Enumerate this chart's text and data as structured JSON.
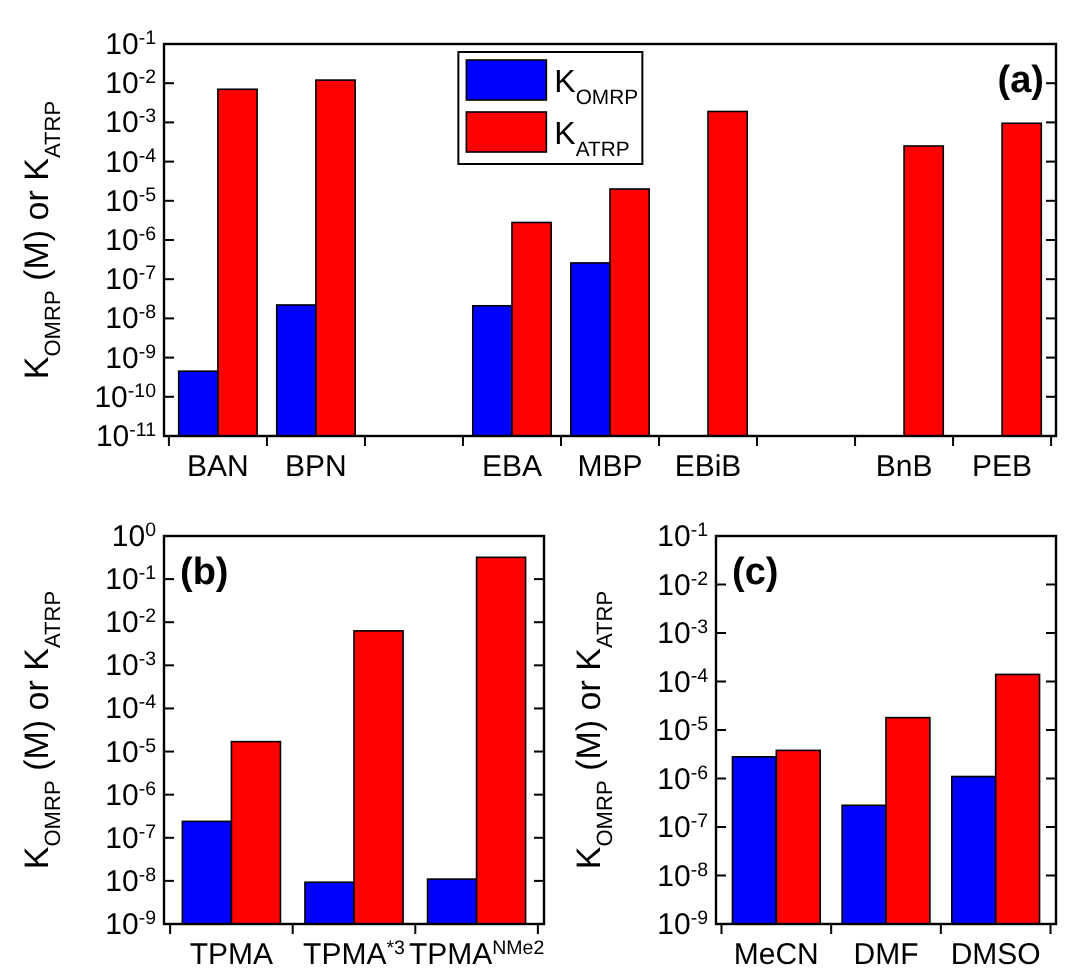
{
  "chart_data": [
    {
      "type": "bar",
      "title": "(a)",
      "ylabel": "K$_{OMRP}$ (M) or K$_{ATRP}$",
      "log": "y",
      "grid": false,
      "legend": "top",
      "categories": [
        "BAN",
        "BPN",
        null,
        "EBA",
        "MBP",
        "EBiB",
        null,
        "BnB",
        "PEB"
      ],
      "ylim": [
        1e-11,
        0.1
      ],
      "yticks": [
        {
          "value": 1e-11,
          "label": "10$^{-11}$"
        },
        {
          "value": 1e-10,
          "label": "10$^{-10}$"
        },
        {
          "value": 1e-09,
          "label": "10$^{-9}$"
        },
        {
          "value": 1e-08,
          "label": "10$^{-8}$"
        },
        {
          "value": 1e-07,
          "label": "10$^{-7}$"
        },
        {
          "value": 1e-06,
          "label": "10$^{-6}$"
        },
        {
          "value": 1e-05,
          "label": "10$^{-5}$"
        },
        {
          "value": 0.0001,
          "label": "10$^{-4}$"
        },
        {
          "value": 0.001,
          "label": "10$^{-3}$"
        },
        {
          "value": 0.01,
          "label": "10$^{-2}$"
        },
        {
          "value": 0.1,
          "label": "10$^{-1}$"
        }
      ],
      "series": [
        {
          "name": "K$_{OMRP}$",
          "color": "#0000ff",
          "values": [
            4.5e-10,
            2.2e-08,
            null,
            2.1e-08,
            2.6e-07,
            null,
            null,
            null,
            null
          ]
        },
        {
          "name": "K$_{ATRP}$",
          "color": "#ff0000",
          "values": [
            0.007,
            0.012,
            null,
            2.8e-06,
            2e-05,
            0.0019,
            null,
            0.00025,
            0.00095
          ]
        }
      ]
    },
    {
      "type": "bar",
      "title": "(b)",
      "ylabel": "K$_{OMRP}$ (M) or K$_{ATRP}$",
      "log": "y",
      "grid": false,
      "categories": [
        "TPMA",
        "TPMA$^{*3}$",
        "TPMA$^{NMe2}$"
      ],
      "ylim": [
        1e-09,
        1
      ],
      "yticks": [
        {
          "value": 1e-09,
          "label": "10$^{-9}$"
        },
        {
          "value": 1e-08,
          "label": "10$^{-8}$"
        },
        {
          "value": 1e-07,
          "label": "10$^{-7}$"
        },
        {
          "value": 1e-06,
          "label": "10$^{-6}$"
        },
        {
          "value": 1e-05,
          "label": "10$^{-5}$"
        },
        {
          "value": 0.0001,
          "label": "10$^{-4}$"
        },
        {
          "value": 0.001,
          "label": "10$^{-3}$"
        },
        {
          "value": 0.01,
          "label": "10$^{-2}$"
        },
        {
          "value": 0.1,
          "label": "10$^{-1}$"
        },
        {
          "value": 1,
          "label": "10$^{0}$"
        }
      ],
      "series": [
        {
          "color": "#0000ff",
          "values": [
            2.4e-07,
            9.3e-09,
            1.1e-08
          ]
        },
        {
          "color": "#ff0000",
          "values": [
            1.7e-05,
            0.0063,
            0.32
          ]
        }
      ]
    },
    {
      "type": "bar",
      "title": "(c)",
      "ylabel": "K$_{OMRP}$ (M) or K$_{ATRP}$",
      "log": "y",
      "grid": false,
      "categories": [
        "MeCN",
        "DMF",
        "DMSO"
      ],
      "ylim": [
        1e-09,
        0.1
      ],
      "yticks": [
        {
          "value": 1e-09,
          "label": "10$^{-9}$"
        },
        {
          "value": 1e-08,
          "label": "10$^{-8}$"
        },
        {
          "value": 1e-07,
          "label": "10$^{-7}$"
        },
        {
          "value": 1e-06,
          "label": "10$^{-6}$"
        },
        {
          "value": 1e-05,
          "label": "10$^{-5}$"
        },
        {
          "value": 0.0001,
          "label": "10$^{-4}$"
        },
        {
          "value": 0.001,
          "label": "10$^{-3}$"
        },
        {
          "value": 0.01,
          "label": "10$^{-2}$"
        },
        {
          "value": 0.1,
          "label": "10$^{-1}$"
        }
      ],
      "series": [
        {
          "color": "#0000ff",
          "values": [
            2.8e-06,
            2.8e-07,
            1.1e-06
          ]
        },
        {
          "color": "#ff0000",
          "values": [
            3.8e-06,
            1.8e-05,
            0.00014
          ]
        }
      ]
    }
  ]
}
